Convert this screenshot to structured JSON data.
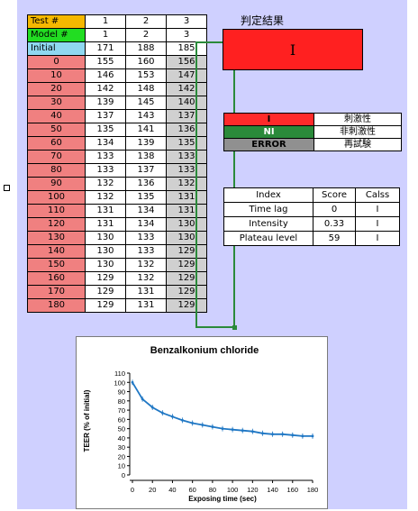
{
  "table": {
    "test_label": "Test #",
    "model_label": "Model #",
    "initial_label": "Initial",
    "test_nums": [
      "1",
      "2",
      "3"
    ],
    "model_nums": [
      "1",
      "2",
      "3"
    ],
    "initial": [
      "171",
      "188",
      "185"
    ],
    "rows": [
      {
        "t": "0",
        "v": [
          "155",
          "160",
          "156"
        ]
      },
      {
        "t": "10",
        "v": [
          "146",
          "153",
          "147"
        ]
      },
      {
        "t": "20",
        "v": [
          "142",
          "148",
          "142"
        ]
      },
      {
        "t": "30",
        "v": [
          "139",
          "145",
          "140"
        ]
      },
      {
        "t": "40",
        "v": [
          "137",
          "143",
          "137"
        ]
      },
      {
        "t": "50",
        "v": [
          "135",
          "141",
          "136"
        ]
      },
      {
        "t": "60",
        "v": [
          "134",
          "139",
          "135"
        ]
      },
      {
        "t": "70",
        "v": [
          "133",
          "138",
          "133"
        ]
      },
      {
        "t": "80",
        "v": [
          "133",
          "137",
          "133"
        ]
      },
      {
        "t": "90",
        "v": [
          "132",
          "136",
          "132"
        ]
      },
      {
        "t": "100",
        "v": [
          "132",
          "135",
          "131"
        ]
      },
      {
        "t": "110",
        "v": [
          "131",
          "134",
          "131"
        ]
      },
      {
        "t": "120",
        "v": [
          "131",
          "134",
          "130"
        ]
      },
      {
        "t": "130",
        "v": [
          "130",
          "133",
          "130"
        ]
      },
      {
        "t": "140",
        "v": [
          "130",
          "133",
          "129"
        ]
      },
      {
        "t": "150",
        "v": [
          "130",
          "132",
          "129"
        ]
      },
      {
        "t": "160",
        "v": [
          "129",
          "132",
          "129"
        ]
      },
      {
        "t": "170",
        "v": [
          "129",
          "131",
          "129"
        ]
      },
      {
        "t": "180",
        "v": [
          "129",
          "131",
          "129"
        ]
      }
    ]
  },
  "result": {
    "title": "判定結果",
    "value": "I",
    "color": "#ff2020"
  },
  "legend": [
    {
      "key": "I",
      "label": "刺激性",
      "color": "#ff2a2a"
    },
    {
      "key": "NI",
      "label": "非刺激性",
      "color": "#2a8a3a"
    },
    {
      "key": "ERROR",
      "label": "再試験",
      "color": "#909090"
    }
  ],
  "index_table": {
    "headers": [
      "Index",
      "Score",
      "Calss"
    ],
    "rows": [
      [
        "Time lag",
        "0",
        "I"
      ],
      [
        "Intensity",
        "0.33",
        "I"
      ],
      [
        "Plateau level",
        "59",
        "I"
      ]
    ]
  },
  "chart_data": {
    "type": "line",
    "title": "Benzalkonium chloride",
    "xlabel": "Exposing time (sec)",
    "ylabel": "TEER (% of initial)",
    "x": [
      0,
      10,
      20,
      30,
      40,
      50,
      60,
      70,
      80,
      90,
      100,
      110,
      120,
      130,
      140,
      150,
      160,
      170,
      180
    ],
    "series": [
      {
        "values": [
          100,
          82,
          73,
          67,
          63,
          59,
          56,
          54,
          52,
          50,
          49,
          48,
          47,
          45,
          44,
          44,
          43,
          42,
          42
        ]
      }
    ],
    "xlim": [
      0,
      180
    ],
    "ylim": [
      0,
      110
    ],
    "xticks": [
      "0",
      "20",
      "40",
      "60",
      "80",
      "100",
      "120",
      "140",
      "160",
      "180"
    ],
    "yticks": [
      "0",
      "10",
      "20",
      "30",
      "40",
      "50",
      "60",
      "70",
      "80",
      "90",
      "100",
      "110"
    ],
    "line_color": "#1f77c4"
  }
}
